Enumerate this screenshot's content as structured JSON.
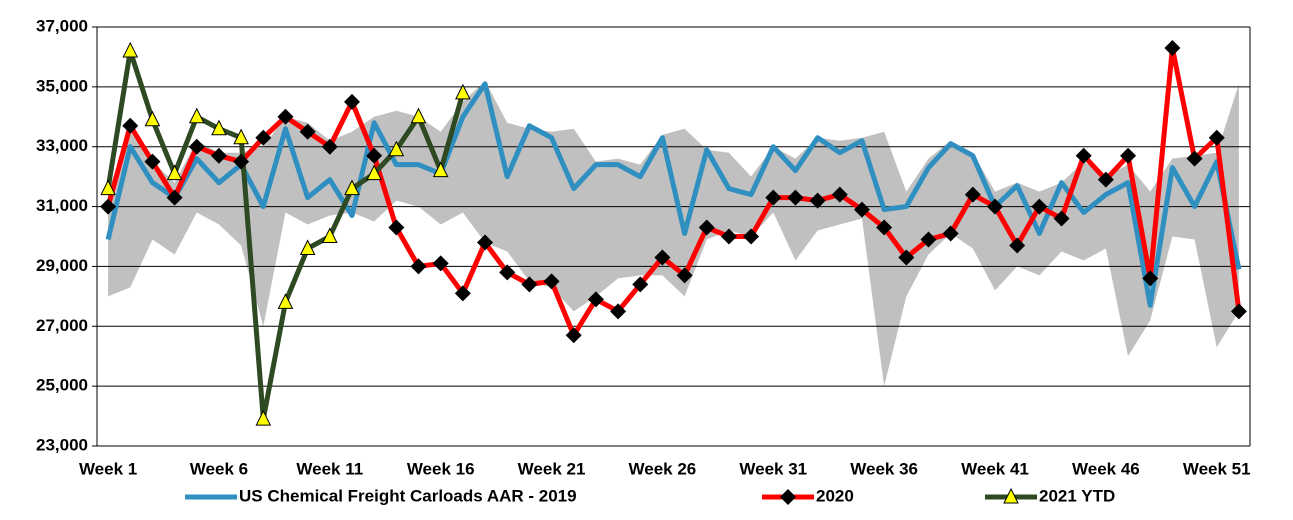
{
  "chart_data": {
    "type": "line",
    "categories": [
      "Week 1",
      null,
      null,
      null,
      null,
      "Week 6",
      null,
      null,
      null,
      null,
      "Week 11",
      null,
      null,
      null,
      null,
      "Week 16",
      null,
      null,
      null,
      null,
      "Week 21",
      null,
      null,
      null,
      null,
      "Week 26",
      null,
      null,
      null,
      null,
      "Week 31",
      null,
      null,
      null,
      null,
      "Week 36",
      null,
      null,
      null,
      null,
      "Week 41",
      null,
      null,
      null,
      null,
      "Week 46",
      null,
      null,
      null,
      null,
      "Week 51",
      null
    ],
    "ylim": [
      23000,
      37000
    ],
    "yticks": [
      {
        "value": 23000,
        "label": "23,000"
      },
      {
        "value": 25000,
        "label": "25,000"
      },
      {
        "value": 27000,
        "label": "27,000"
      },
      {
        "value": 29000,
        "label": "29,000"
      },
      {
        "value": 31000,
        "label": "31,000"
      },
      {
        "value": 33000,
        "label": "33,000"
      },
      {
        "value": 35000,
        "label": "35,000"
      },
      {
        "value": 37000,
        "label": "37,000"
      }
    ],
    "grid": true,
    "range": {
      "color": "#c0c0c0",
      "high": [
        31500,
        33500,
        32500,
        31800,
        33200,
        32800,
        32800,
        33000,
        34000,
        33800,
        33200,
        33500,
        34000,
        34200,
        34000,
        33500,
        34500,
        35200,
        33800,
        33600,
        33500,
        33600,
        32500,
        32600,
        32400,
        33400,
        33600,
        32900,
        32800,
        32000,
        33000,
        32600,
        33300,
        33200,
        33300,
        33500,
        31500,
        32600,
        33200,
        32800,
        31500,
        31800,
        31500,
        31800,
        32500,
        32000,
        32400,
        31500,
        32600,
        32700,
        32800,
        35100
      ],
      "low": [
        28000,
        28300,
        29900,
        29400,
        30800,
        30400,
        29700,
        27000,
        30800,
        30400,
        30700,
        30800,
        30500,
        31200,
        31000,
        30400,
        30800,
        29800,
        29500,
        28500,
        28300,
        27500,
        28000,
        28600,
        28700,
        28700,
        28000,
        29900,
        30200,
        30000,
        30800,
        29200,
        30200,
        30400,
        30600,
        25000,
        28000,
        29400,
        30100,
        29600,
        28200,
        29000,
        28700,
        29500,
        29200,
        29600,
        26000,
        27200,
        30000,
        29900,
        26300,
        27500
      ]
    },
    "series": [
      {
        "name": "US Chemical Freight Carloads AAR - 2019",
        "color": "#2e8fc0",
        "marker": "none",
        "values": [
          29900,
          33000,
          31800,
          31300,
          32600,
          31800,
          32400,
          31000,
          33600,
          31300,
          31900,
          30700,
          33800,
          32400,
          32400,
          32100,
          34000,
          35100,
          32000,
          33700,
          33300,
          31600,
          32400,
          32400,
          32000,
          33300,
          30100,
          32900,
          31600,
          31400,
          33000,
          32200,
          33300,
          32800,
          33200,
          30900,
          31000,
          32300,
          33100,
          32700,
          31000,
          31700,
          30100,
          31800,
          30800,
          31400,
          31800,
          27700,
          32300,
          31000,
          32500,
          28900
        ]
      },
      {
        "name": "2020",
        "color": "#ff0000",
        "marker": "diamond",
        "marker_color": "#000000",
        "values": [
          31000,
          33700,
          32500,
          31300,
          33000,
          32700,
          32500,
          33300,
          34000,
          33500,
          33000,
          34500,
          32700,
          30300,
          29000,
          29100,
          28100,
          29800,
          28800,
          28400,
          28500,
          26700,
          27900,
          27500,
          28400,
          29300,
          28700,
          30300,
          30000,
          30000,
          31300,
          31300,
          31200,
          31400,
          30900,
          30300,
          29300,
          29900,
          30100,
          31400,
          31000,
          29700,
          31000,
          30600,
          32700,
          31900,
          32700,
          28600,
          36300,
          32600,
          33300,
          27500
        ]
      },
      {
        "name": "2021 YTD",
        "color": "#2d4a22",
        "marker": "triangle",
        "marker_color": "#ffff00",
        "values": [
          31600,
          36200,
          33900,
          32100,
          34000,
          33600,
          33300,
          23900,
          27800,
          29600,
          30000,
          31600,
          32100,
          32900,
          34000,
          32200,
          34800,
          null,
          null,
          null,
          null,
          null,
          null,
          null,
          null,
          null,
          null,
          null,
          null,
          null,
          null,
          null,
          null,
          null,
          null,
          null,
          null,
          null,
          null,
          null,
          null,
          null,
          null,
          null,
          null,
          null,
          null,
          null,
          null,
          null,
          null,
          null
        ]
      }
    ]
  }
}
